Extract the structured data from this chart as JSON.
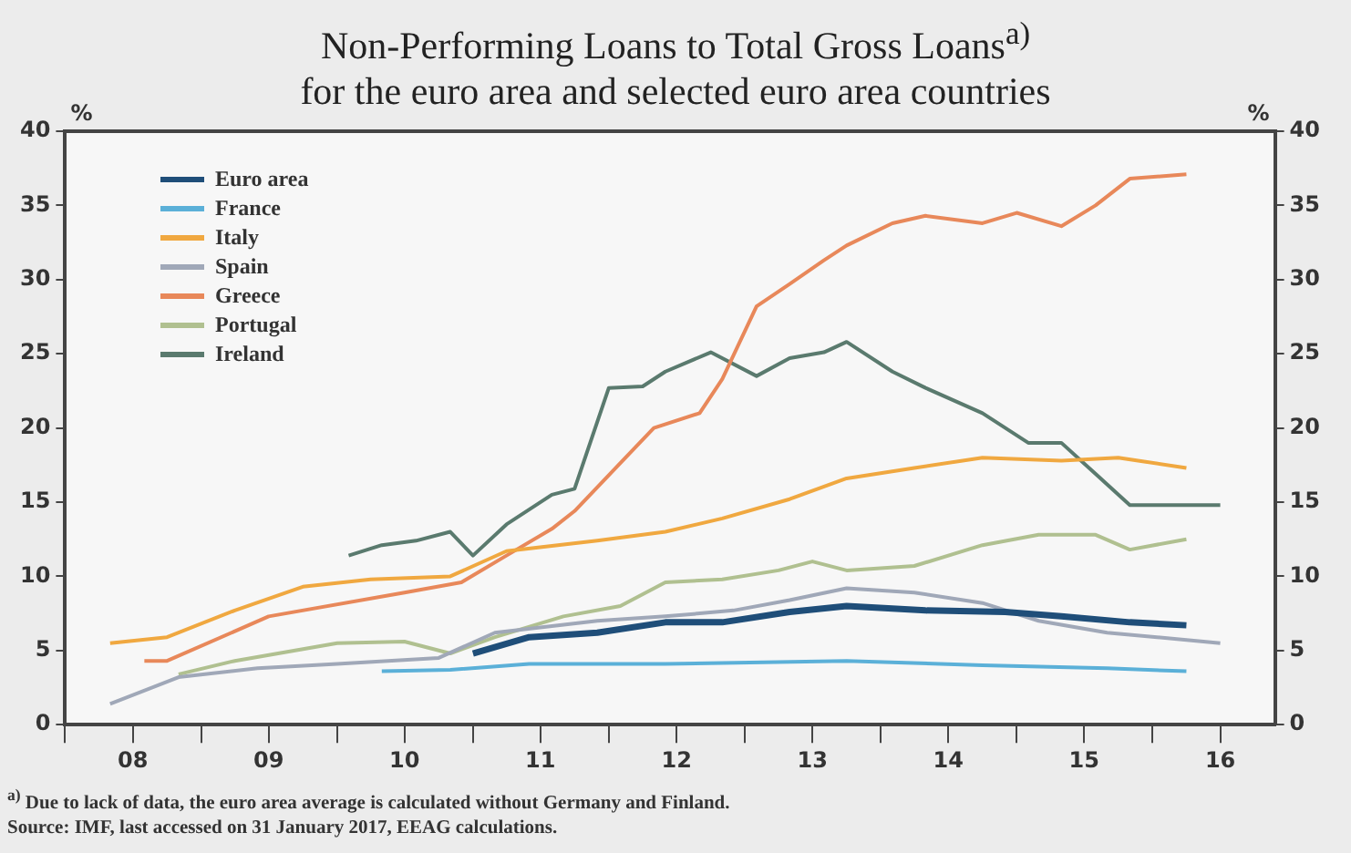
{
  "chart_data": {
    "type": "line",
    "title": "Non-Performing Loans to Total Gross Loans$^{a)}$",
    "subtitle": "for the euro area and selected euro area countries",
    "ylabel": "%",
    "y2label": "%",
    "xlim": [
      "2008-01-01",
      "2016-11-25"
    ],
    "xticks": [
      {
        "value": "2008-01-01",
        "label": null
      },
      {
        "value": "2008-07-01",
        "label": "08"
      },
      {
        "value": "2009-01-01",
        "label": null
      },
      {
        "value": "2009-07-01",
        "label": "09"
      },
      {
        "value": "2010-01-01",
        "label": null
      },
      {
        "value": "2010-07-01",
        "label": "10"
      },
      {
        "value": "2011-01-01",
        "label": null
      },
      {
        "value": "2011-07-01",
        "label": "11"
      },
      {
        "value": "2012-01-01",
        "label": null
      },
      {
        "value": "2012-07-01",
        "label": "12"
      },
      {
        "value": "2013-01-01",
        "label": null
      },
      {
        "value": "2013-07-01",
        "label": "13"
      },
      {
        "value": "2014-01-01",
        "label": null
      },
      {
        "value": "2014-07-01",
        "label": "14"
      },
      {
        "value": "2015-01-01",
        "label": null
      },
      {
        "value": "2015-07-01",
        "label": "15"
      },
      {
        "value": "2016-01-01",
        "label": null
      },
      {
        "value": "2016-07-01",
        "label": "16"
      }
    ],
    "ylim": [
      0,
      40
    ],
    "yticks": [
      0,
      5,
      10,
      15,
      20,
      25,
      30,
      35,
      40
    ],
    "y2lim": [
      0,
      40
    ],
    "y2ticks": [
      0,
      5,
      10,
      15,
      20,
      25,
      30,
      35,
      40
    ],
    "grid": false,
    "legend": "top left",
    "marker": "none",
    "line_style": "solid",
    "series": [
      {
        "name": "Euro area",
        "color": "#1f4e79",
        "x": [
          "2011-01",
          "2011-06",
          "2011-12",
          "2012-06",
          "2012-11",
          "2013-05",
          "2013-10",
          "2014-05",
          "2014-12",
          "2015-05",
          "2015-11",
          "2016-04"
        ],
        "values": [
          4.8,
          5.9,
          6.2,
          6.9,
          6.9,
          7.6,
          8.0,
          7.7,
          7.6,
          7.3,
          6.9,
          6.7
        ]
      },
      {
        "name": "France",
        "color": "#5bb0d8",
        "x": [
          "2010-05",
          "2010-11",
          "2011-06",
          "2012-06",
          "2013-10",
          "2014-10",
          "2015-09",
          "2016-04"
        ],
        "values": [
          3.6,
          3.7,
          4.1,
          4.1,
          4.3,
          4.0,
          3.8,
          3.6
        ]
      },
      {
        "name": "Italy",
        "color": "#f0a840",
        "x": [
          "2008-05",
          "2008-10",
          "2009-04",
          "2009-10",
          "2010-04",
          "2010-11",
          "2011-04",
          "2011-12",
          "2012-06",
          "2012-11",
          "2013-05",
          "2013-10",
          "2014-04",
          "2014-10",
          "2015-05",
          "2015-10",
          "2016-04"
        ],
        "values": [
          5.5,
          5.9,
          7.7,
          9.3,
          9.8,
          10.0,
          11.7,
          12.4,
          13.0,
          13.9,
          15.2,
          16.6,
          17.3,
          18.0,
          17.8,
          18.0,
          17.3
        ]
      },
      {
        "name": "Spain",
        "color": "#a0a8b8",
        "x": [
          "2008-05",
          "2008-11",
          "2009-06",
          "2010-01",
          "2010-10",
          "2011-03",
          "2011-12",
          "2012-06",
          "2012-12",
          "2013-05",
          "2013-10",
          "2014-04",
          "2014-10",
          "2015-03",
          "2015-09",
          "2016-07"
        ],
        "values": [
          1.4,
          3.2,
          3.8,
          4.1,
          4.5,
          6.2,
          7.0,
          7.3,
          7.7,
          8.4,
          9.2,
          8.9,
          8.2,
          7.0,
          6.2,
          5.5
        ]
      },
      {
        "name": "Greece",
        "color": "#e8885a",
        "x": [
          "2008-08",
          "2008-10",
          "2009-07",
          "2010-07",
          "2010-12",
          "2011-04",
          "2011-08",
          "2011-10",
          "2012-05",
          "2012-09",
          "2012-11",
          "2013-02",
          "2013-05",
          "2013-08",
          "2013-10",
          "2014-02",
          "2014-05",
          "2014-10",
          "2015-01",
          "2015-05",
          "2015-08",
          "2015-11",
          "2016-04"
        ],
        "values": [
          4.3,
          4.3,
          7.3,
          8.9,
          9.6,
          11.4,
          13.2,
          14.4,
          20.0,
          21.0,
          23.3,
          28.2,
          29.7,
          31.3,
          32.3,
          33.8,
          34.3,
          33.8,
          34.5,
          33.6,
          35.0,
          36.8,
          37.1
        ]
      },
      {
        "name": "Portugal",
        "color": "#b0c090",
        "x": [
          "2008-11",
          "2009-04",
          "2010-01",
          "2010-07",
          "2010-11",
          "2011-03",
          "2011-09",
          "2012-02",
          "2012-06",
          "2012-11",
          "2013-04",
          "2013-07",
          "2013-10",
          "2014-04",
          "2014-10",
          "2015-03",
          "2015-08",
          "2015-11",
          "2016-04"
        ],
        "values": [
          3.4,
          4.3,
          5.5,
          5.6,
          4.8,
          5.9,
          7.3,
          8.0,
          9.6,
          9.8,
          10.4,
          11.0,
          10.4,
          10.7,
          12.1,
          12.8,
          12.8,
          11.8,
          12.5
        ]
      },
      {
        "name": "Ireland",
        "color": "#5a7a6e",
        "x": [
          "2010-02",
          "2010-05",
          "2010-08",
          "2010-11",
          "2011-01",
          "2011-04",
          "2011-08",
          "2011-10",
          "2012-01",
          "2012-04",
          "2012-06",
          "2012-10",
          "2013-02",
          "2013-05",
          "2013-08",
          "2013-10",
          "2014-02",
          "2014-05",
          "2014-10",
          "2015-02",
          "2015-05",
          "2015-08",
          "2015-11",
          "2016-07"
        ],
        "values": [
          11.4,
          12.1,
          12.4,
          13.0,
          11.4,
          13.5,
          15.5,
          15.9,
          22.7,
          22.8,
          23.8,
          25.1,
          23.5,
          24.7,
          25.1,
          25.8,
          23.8,
          22.7,
          21.0,
          19.0,
          19.0,
          16.9,
          14.8,
          14.8
        ]
      }
    ],
    "annotations": [
      "$^{a)}$ Due to lack of data, the euro area average is calculated without Germany and Finland.",
      "Source: IMF, last accessed on 31 January 2017, EEAG calculations."
    ]
  }
}
